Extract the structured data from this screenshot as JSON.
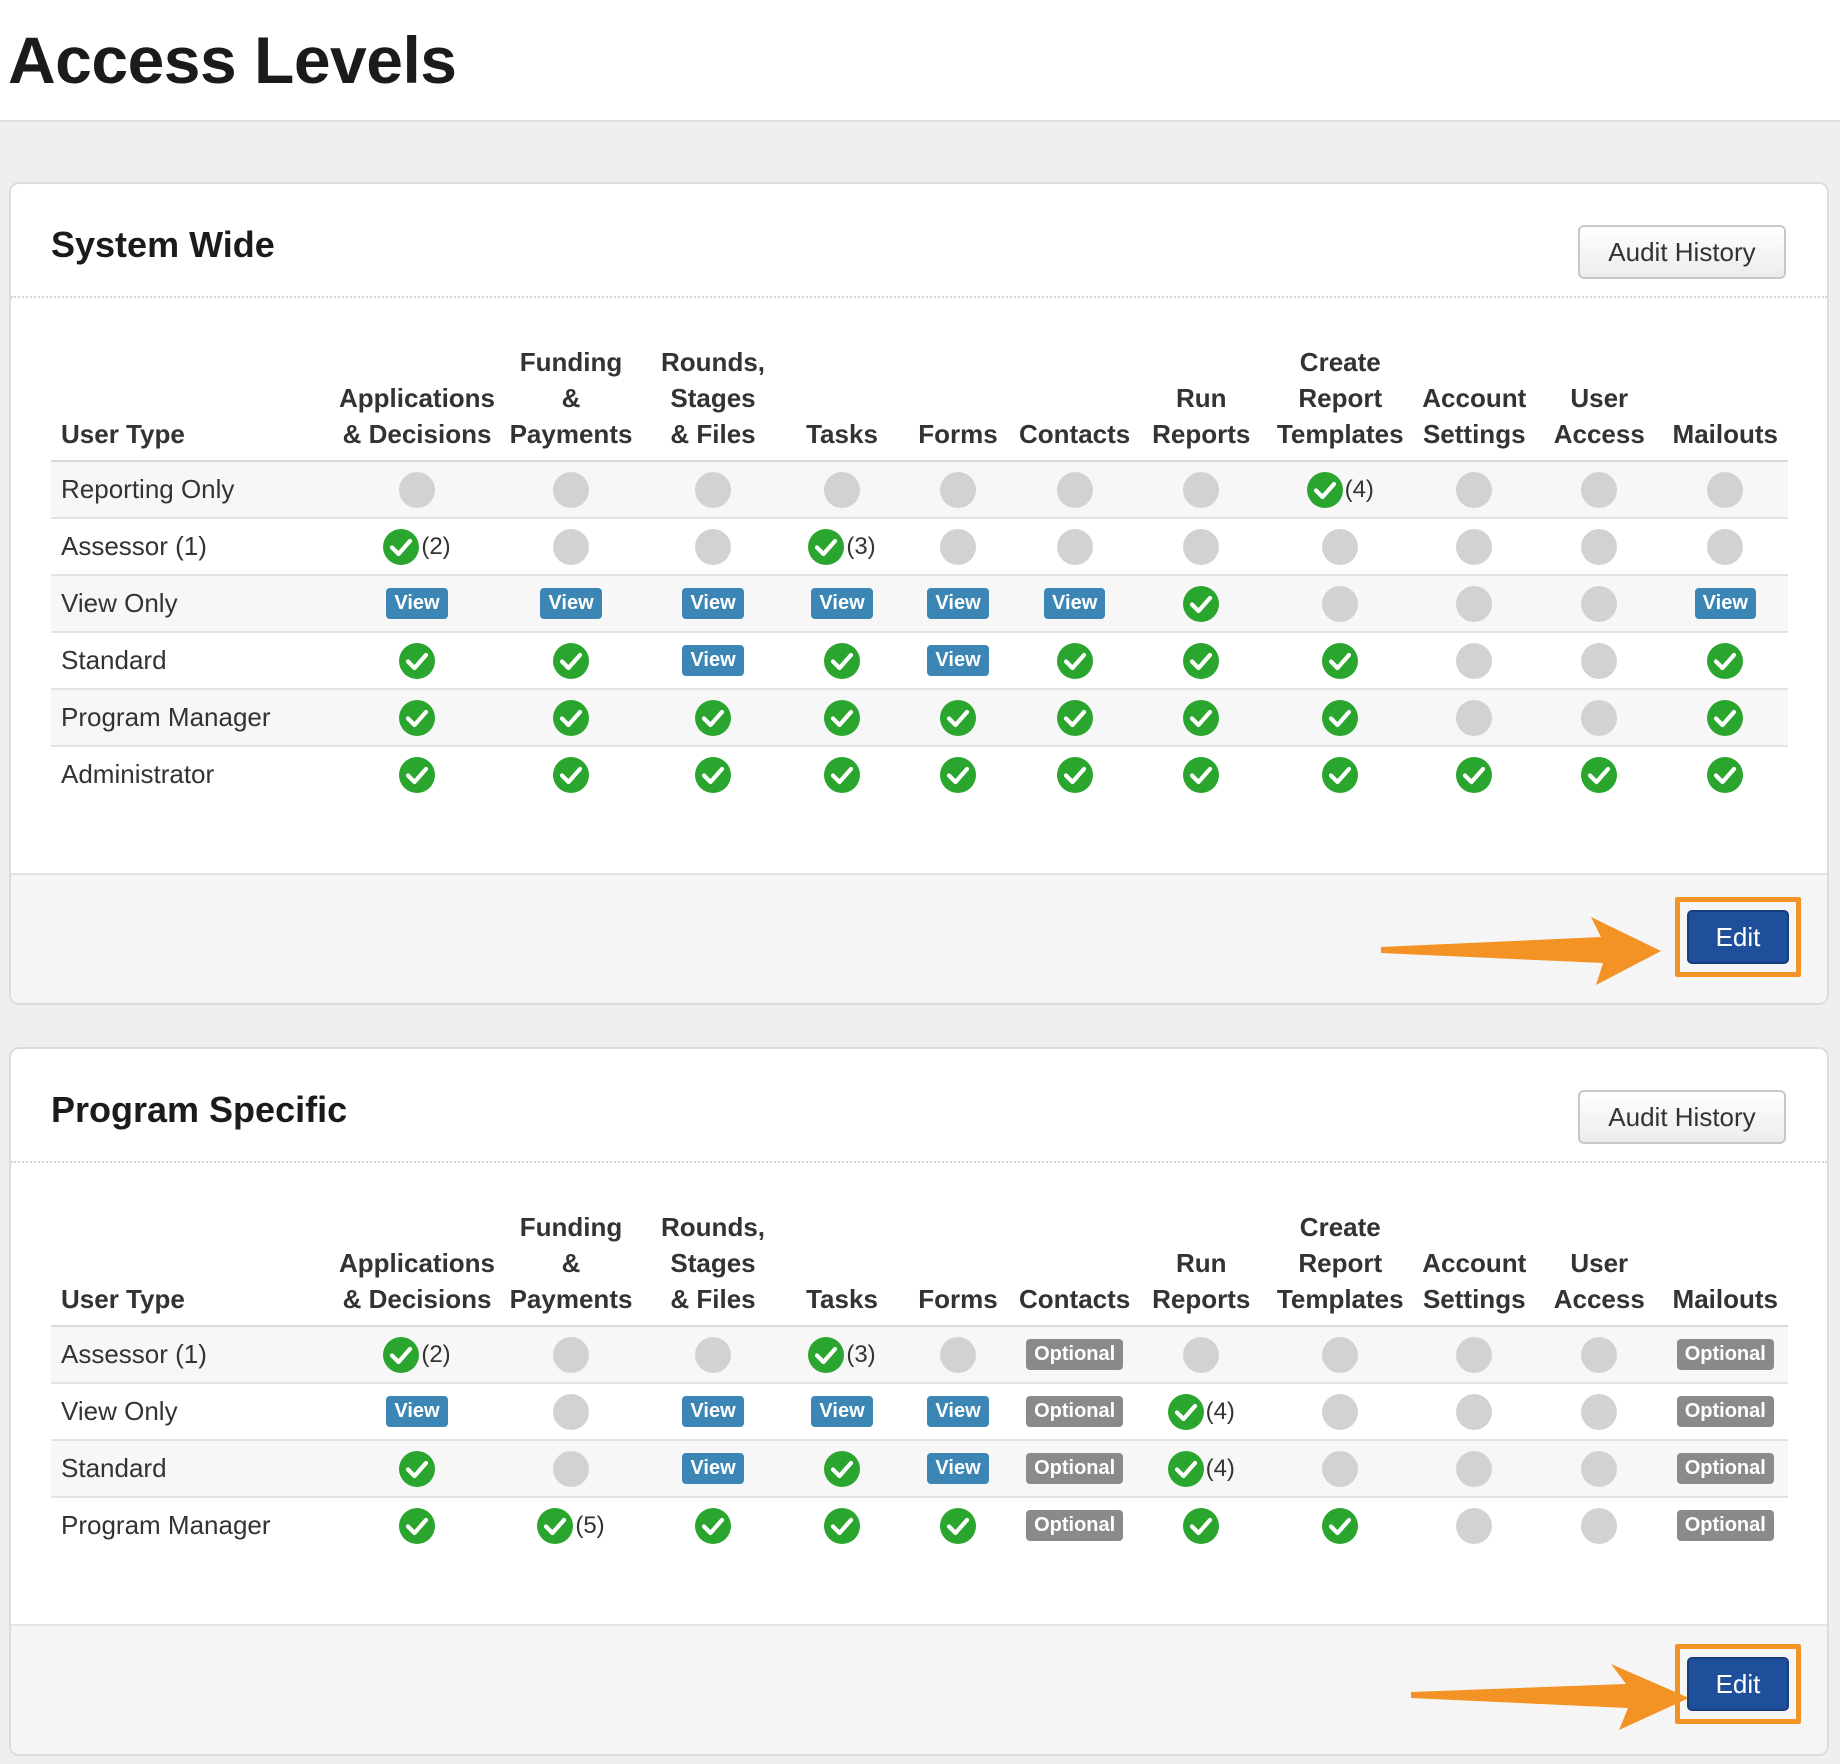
{
  "page_title": "Access Levels",
  "colors": {
    "check": "#2aa52e",
    "inactive": "#d2d2d2",
    "view_badge": "#3b86b5",
    "optional_badge": "#8a8a8a",
    "edit_button": "#1f4f9a",
    "highlight": "#f39325"
  },
  "columns": [
    "User Type",
    "Applications & Decisions",
    "Funding & Payments",
    "Rounds, Stages & Files",
    "Tasks",
    "Forms",
    "Contacts",
    "Run Reports",
    "Create Report Templates",
    "Account Settings",
    "User Access",
    "Mailouts"
  ],
  "labels": {
    "view": "View",
    "optional": "Optional"
  },
  "system_wide": {
    "title": "System Wide",
    "audit_label": "Audit History",
    "edit_label": "Edit",
    "rows": [
      {
        "user_type": "Reporting Only",
        "cells": [
          "none",
          "none",
          "none",
          "none",
          "none",
          "none",
          "none",
          "check:(4)",
          "none",
          "none",
          "none"
        ]
      },
      {
        "user_type": "Assessor (1)",
        "cells": [
          "check:(2)",
          "none",
          "none",
          "check:(3)",
          "none",
          "none",
          "none",
          "none",
          "none",
          "none",
          "none"
        ]
      },
      {
        "user_type": "View Only",
        "cells": [
          "view",
          "view",
          "view",
          "view",
          "view",
          "view",
          "check",
          "none",
          "none",
          "none",
          "view"
        ]
      },
      {
        "user_type": "Standard",
        "cells": [
          "check",
          "check",
          "view",
          "check",
          "view",
          "check",
          "check",
          "check",
          "none",
          "none",
          "check"
        ]
      },
      {
        "user_type": "Program Manager",
        "cells": [
          "check",
          "check",
          "check",
          "check",
          "check",
          "check",
          "check",
          "check",
          "none",
          "none",
          "check"
        ]
      },
      {
        "user_type": "Administrator",
        "cells": [
          "check",
          "check",
          "check",
          "check",
          "check",
          "check",
          "check",
          "check",
          "check",
          "check",
          "check"
        ]
      }
    ]
  },
  "program_specific": {
    "title": "Program Specific",
    "audit_label": "Audit History",
    "edit_label": "Edit",
    "rows": [
      {
        "user_type": "Assessor (1)",
        "cells": [
          "check:(2)",
          "none",
          "none",
          "check:(3)",
          "none",
          "optional",
          "none",
          "none",
          "none",
          "none",
          "optional"
        ]
      },
      {
        "user_type": "View Only",
        "cells": [
          "view",
          "none",
          "view",
          "view",
          "view",
          "optional",
          "check:(4)",
          "none",
          "none",
          "none",
          "optional"
        ]
      },
      {
        "user_type": "Standard",
        "cells": [
          "check",
          "none",
          "view",
          "check",
          "view",
          "optional",
          "check:(4)",
          "none",
          "none",
          "none",
          "optional"
        ]
      },
      {
        "user_type": "Program Manager",
        "cells": [
          "check",
          "check:(5)",
          "check",
          "check",
          "check",
          "optional",
          "check",
          "check",
          "none",
          "none",
          "optional"
        ]
      }
    ]
  }
}
